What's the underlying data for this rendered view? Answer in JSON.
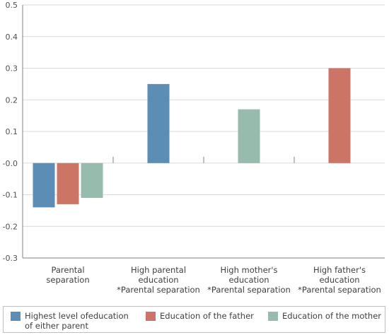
{
  "chart_data": {
    "type": "bar",
    "title": "",
    "xlabel": "",
    "ylabel": "",
    "ylim": [
      -0.3,
      0.5
    ],
    "yticks": [
      "0.5",
      "0.4",
      "0.3",
      "0.2",
      "0.1",
      "-0.0",
      "-0.1",
      "-0.2",
      "-0.3"
    ],
    "grid": true,
    "legend_position": "bottom",
    "categories": [
      [
        "Parental",
        "separation"
      ],
      [
        "High parental",
        "education",
        "*Parental separation"
      ],
      [
        "High mother's",
        "education",
        "*Parental separation"
      ],
      [
        "High father's",
        "education",
        "*Parental separation"
      ]
    ],
    "series": [
      {
        "name": "Highest level ofeducation of either parent",
        "color": "#5b8db5",
        "values": [
          -0.14,
          0.25,
          null,
          null
        ]
      },
      {
        "name": "Education of the father",
        "color": "#cc7566",
        "values": [
          -0.13,
          null,
          null,
          0.3
        ]
      },
      {
        "name": "Education of the mother",
        "color": "#97bbac",
        "values": [
          -0.11,
          null,
          0.17,
          null
        ]
      }
    ]
  },
  "legend": {
    "items": [
      {
        "line1": "Highest level ofeducation",
        "line2": "of either parent",
        "color": "#5b8db5"
      },
      {
        "line1": "Education of the father",
        "color": "#cc7566"
      },
      {
        "line1": "Education of the mother",
        "color": "#97bbac"
      }
    ]
  }
}
